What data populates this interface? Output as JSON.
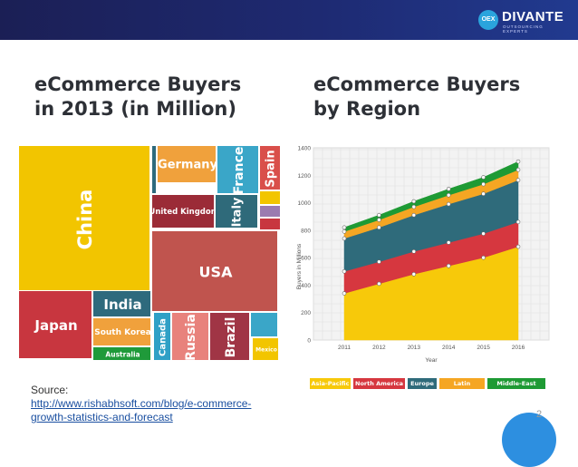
{
  "header": {
    "logo_mark": "OEX",
    "logo_name": "DIVANTE",
    "logo_sub": "OUTSOURCING EXPERTS"
  },
  "left_title": {
    "line1": "eCommerce Buyers",
    "line2": "in 2013 (in Million)"
  },
  "right_title": {
    "line1": "eCommerce Buyers",
    "line2": "by Region"
  },
  "source": {
    "label": "Source:",
    "link_line1": "http://www.rishabhsoft.com/blog/e-commerce-",
    "link_line2": "growth-statistics-and-forecast"
  },
  "page_number": "2",
  "chart_data": [
    {
      "type": "treemap",
      "title": "",
      "items": [
        {
          "label": "China",
          "color": "#f2c500"
        },
        {
          "label": "Germany",
          "color": "#f0a13c"
        },
        {
          "label": "France",
          "color": "#3aa6c8"
        },
        {
          "label": "Spain",
          "color": "#d94f4a"
        },
        {
          "label": "United Kingdom",
          "color": "#9b2b37"
        },
        {
          "label": "Italy",
          "color": "#2f6a7a"
        },
        {
          "label": "USA",
          "color": "#c0544e"
        },
        {
          "label": "Japan",
          "color": "#c8363f"
        },
        {
          "label": "India",
          "color": "#2e6a7d"
        },
        {
          "label": "South Korea",
          "color": "#f0a13c"
        },
        {
          "label": "Australia",
          "color": "#1f9a3a"
        },
        {
          "label": "Canada",
          "color": "#2fa0c6"
        },
        {
          "label": "Russia",
          "color": "#e8827c"
        },
        {
          "label": "Brazil",
          "color": "#a03545"
        },
        {
          "label": "Mexico",
          "color": "#f2c500"
        }
      ]
    },
    {
      "type": "area",
      "stacked": true,
      "x": [
        2011,
        2012,
        2013,
        2014,
        2015,
        2016
      ],
      "xlabel": "Year",
      "ylabel": "Buyers in Millions",
      "ylim": [
        0,
        1400
      ],
      "yticks": [
        0,
        200,
        400,
        600,
        800,
        1000,
        1200,
        1400
      ],
      "grid": true,
      "legend_position": "bottom",
      "series": [
        {
          "name": "Asia-Pacific",
          "color": "#f7c90a",
          "values": [
            340,
            410,
            480,
            540,
            600,
            680
          ]
        },
        {
          "name": "North America",
          "color": "#d6373f",
          "values": [
            160,
            160,
            165,
            170,
            175,
            180
          ]
        },
        {
          "name": "Europe",
          "color": "#2f6b7b",
          "values": [
            240,
            250,
            265,
            280,
            290,
            305
          ]
        },
        {
          "name": "Latin America",
          "color": "#f5a623",
          "values": [
            50,
            55,
            60,
            65,
            70,
            75
          ]
        },
        {
          "name": "Middle-East Africa",
          "color": "#1e9a34",
          "values": [
            30,
            35,
            40,
            45,
            50,
            60
          ]
        }
      ]
    }
  ]
}
